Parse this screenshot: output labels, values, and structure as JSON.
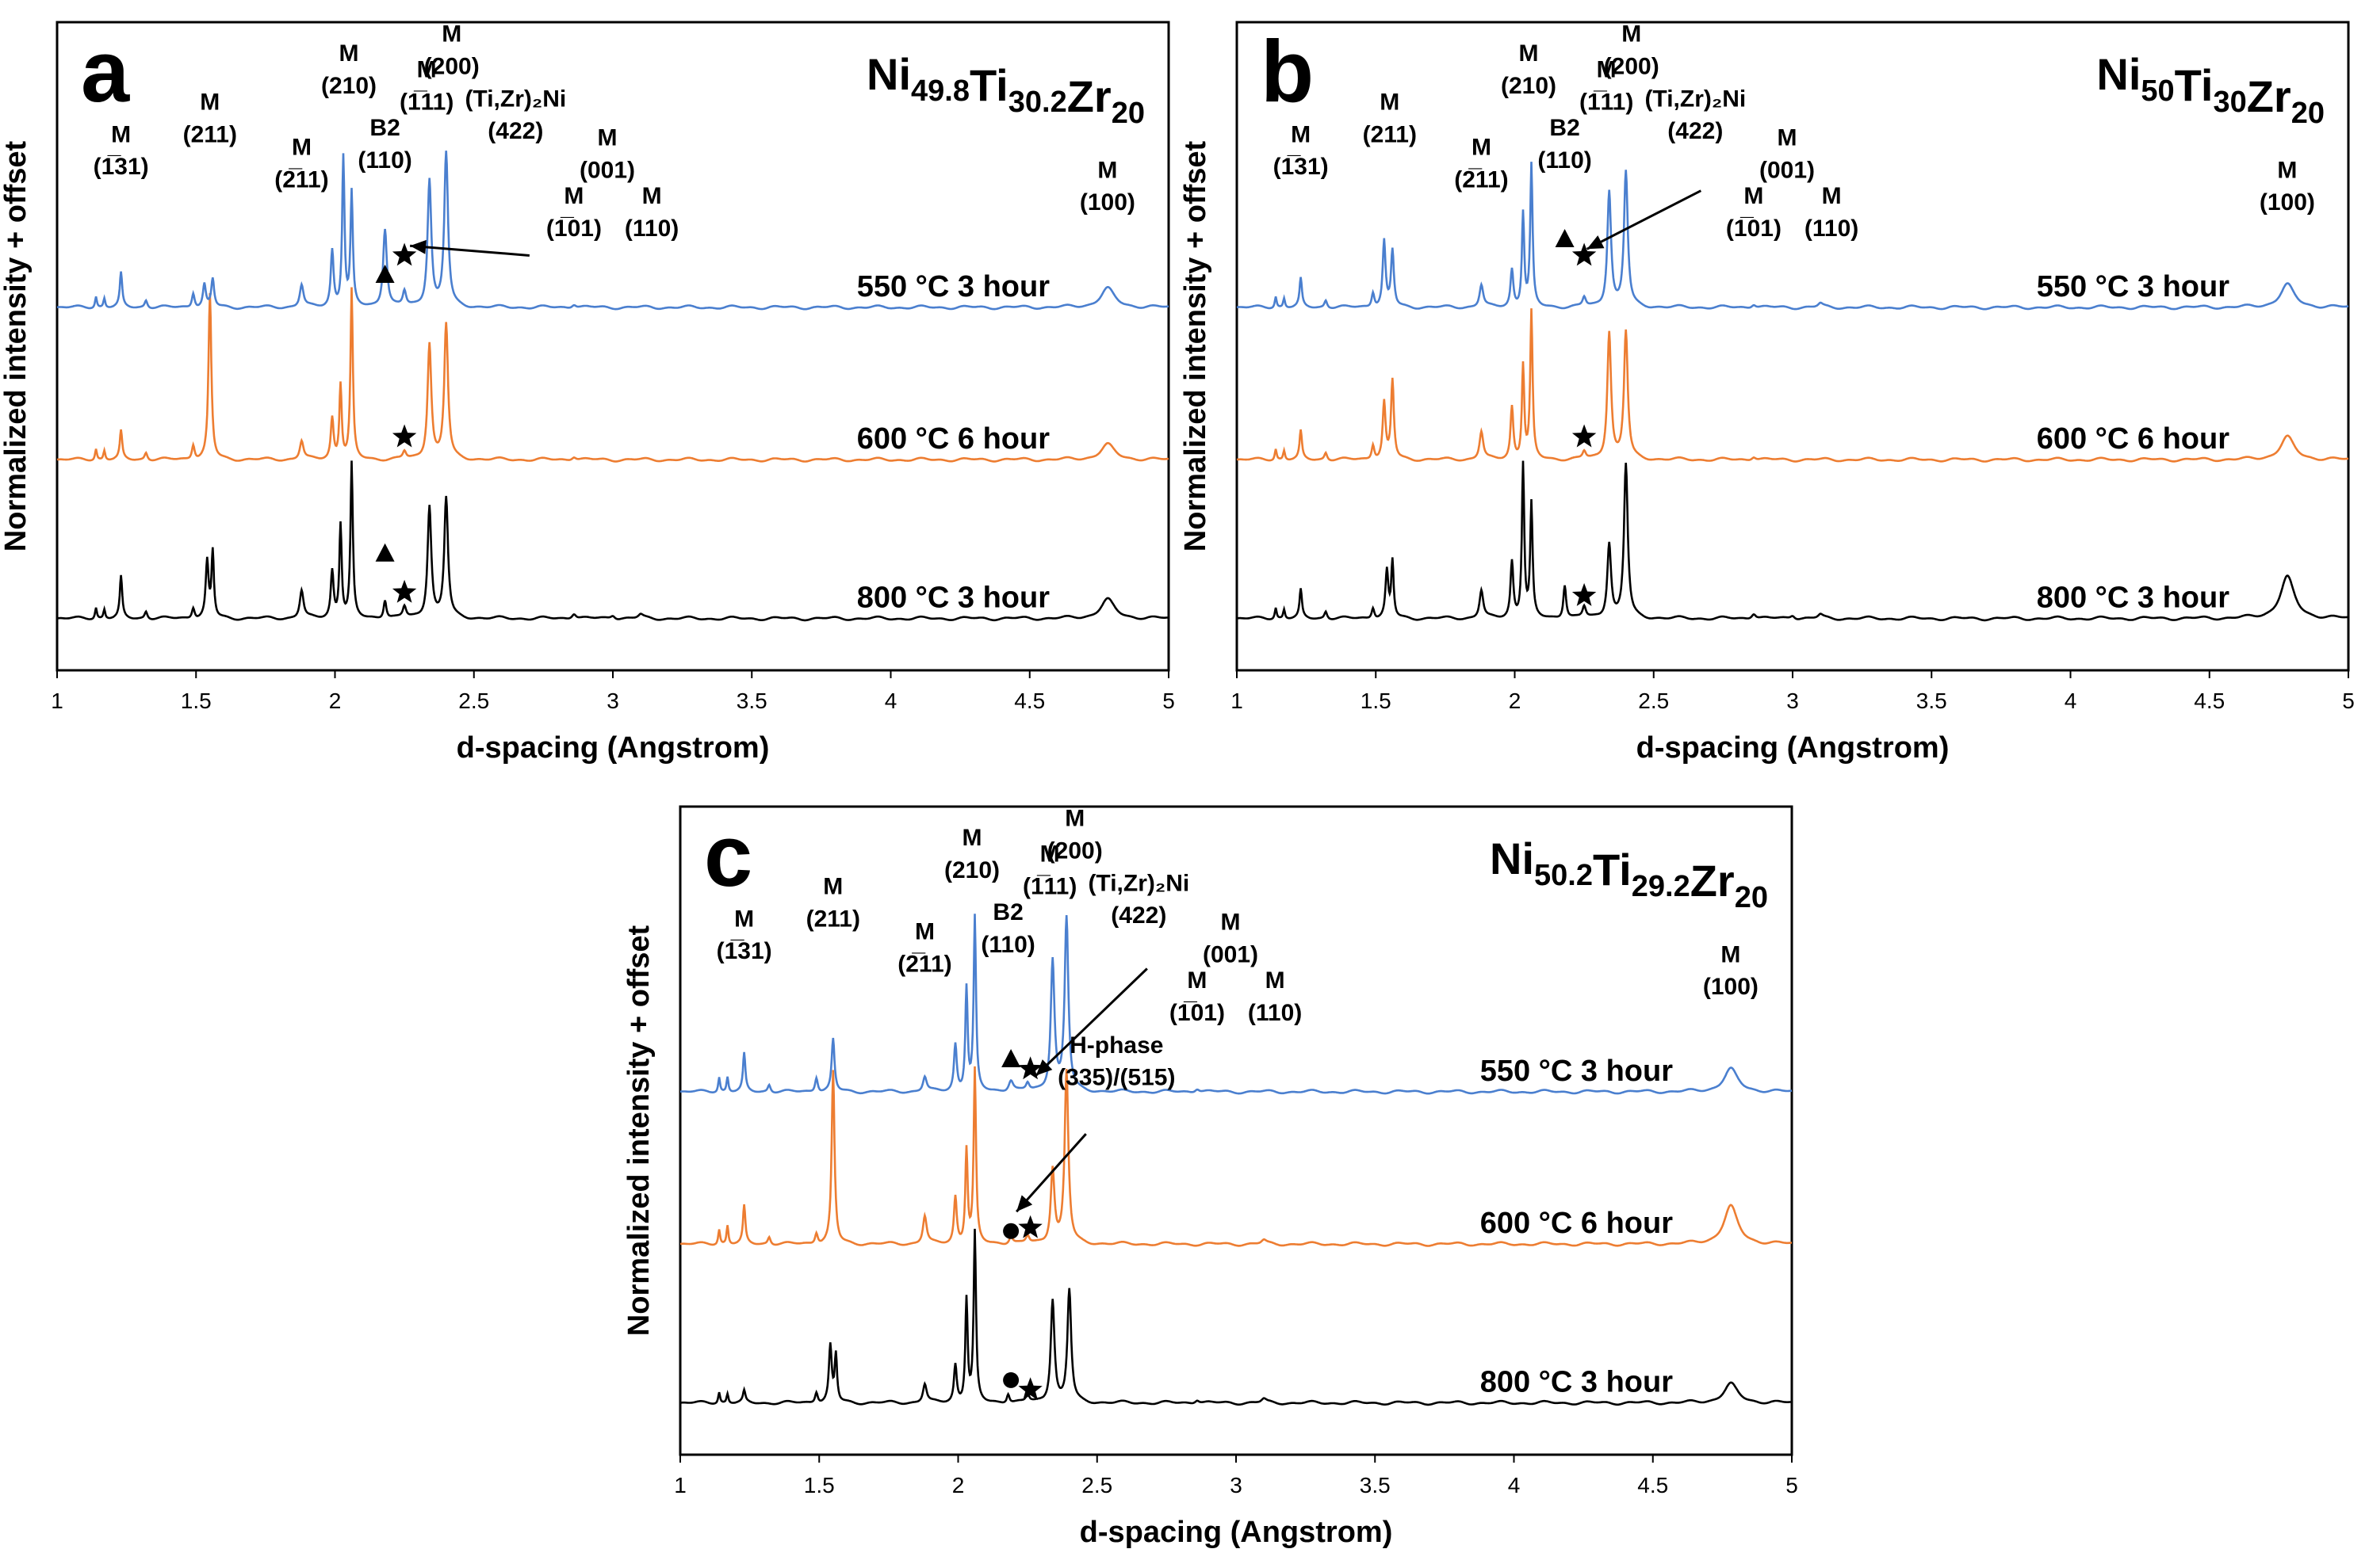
{
  "chart_data": [
    {
      "type": "line",
      "panel_label": "a",
      "composition": {
        "base": [
          "Ni",
          "Ti",
          "Zr"
        ],
        "subs": [
          "49.8",
          "30.2",
          "20"
        ]
      },
      "xlabel": "d-spacing (Angstrom)",
      "ylabel": "Normalized intensity + offset",
      "xlim": [
        1,
        5
      ],
      "x_ticks": [
        "1",
        "1.5",
        "2",
        "2.5",
        "3",
        "3.5",
        "4",
        "4.5",
        "5"
      ],
      "series": [
        {
          "name": "800 °C 3 hour",
          "color": "#000000",
          "offset": 2,
          "peaks": [
            [
              1.14,
              0.06,
              0.004
            ],
            [
              1.17,
              0.05,
              0.004
            ],
            [
              1.23,
              0.22,
              0.005
            ],
            [
              1.32,
              0.04,
              0.006
            ],
            [
              1.49,
              0.06,
              0.006
            ],
            [
              1.54,
              0.3,
              0.006
            ],
            [
              1.56,
              0.35,
              0.005
            ],
            [
              1.88,
              0.15,
              0.008
            ],
            [
              1.99,
              0.25,
              0.006
            ],
            [
              2.02,
              0.5,
              0.005
            ],
            [
              2.06,
              0.82,
              0.005
            ],
            [
              2.18,
              0.1,
              0.006
            ],
            [
              2.25,
              0.06,
              0.007
            ],
            [
              2.34,
              0.6,
              0.008
            ],
            [
              2.4,
              0.64,
              0.008
            ],
            [
              2.86,
              0.03,
              0.01
            ],
            [
              3.0,
              0.02,
              0.01
            ],
            [
              3.1,
              0.02,
              0.01
            ],
            [
              4.78,
              0.1,
              0.03
            ]
          ]
        },
        {
          "name": "600 °C 6 hour",
          "color": "#ed7d31",
          "offset": 1,
          "peaks": [
            [
              1.14,
              0.06,
              0.004
            ],
            [
              1.17,
              0.05,
              0.004
            ],
            [
              1.23,
              0.15,
              0.005
            ],
            [
              1.32,
              0.04,
              0.006
            ],
            [
              1.49,
              0.08,
              0.006
            ],
            [
              1.55,
              0.88,
              0.006
            ],
            [
              1.88,
              0.1,
              0.008
            ],
            [
              1.99,
              0.22,
              0.006
            ],
            [
              2.02,
              0.4,
              0.005
            ],
            [
              2.06,
              0.9,
              0.005
            ],
            [
              2.25,
              0.04,
              0.007
            ],
            [
              2.34,
              0.62,
              0.008
            ],
            [
              2.4,
              0.72,
              0.008
            ],
            [
              2.86,
              0.02,
              0.01
            ],
            [
              4.78,
              0.08,
              0.03
            ]
          ]
        },
        {
          "name": "550 °C 3 hour",
          "color": "#4a7fcf",
          "offset": 0,
          "peaks": [
            [
              1.14,
              0.06,
              0.004
            ],
            [
              1.17,
              0.05,
              0.004
            ],
            [
              1.23,
              0.18,
              0.005
            ],
            [
              1.32,
              0.04,
              0.006
            ],
            [
              1.49,
              0.08,
              0.006
            ],
            [
              1.53,
              0.12,
              0.006
            ],
            [
              1.56,
              0.15,
              0.006
            ],
            [
              1.88,
              0.12,
              0.008
            ],
            [
              1.99,
              0.3,
              0.006
            ],
            [
              2.03,
              0.8,
              0.005
            ],
            [
              2.06,
              0.6,
              0.005
            ],
            [
              2.18,
              0.42,
              0.008
            ],
            [
              2.25,
              0.08,
              0.007
            ],
            [
              2.34,
              0.68,
              0.008
            ],
            [
              2.4,
              0.82,
              0.008
            ],
            [
              2.86,
              0.02,
              0.01
            ],
            [
              4.78,
              0.1,
              0.03
            ]
          ]
        }
      ],
      "annotations": [
        "M",
        "(1̅31)",
        "M",
        "(211)",
        "M",
        "(2̅11)",
        "M",
        "(210)",
        "B2",
        "(110)",
        "M",
        "(1̅11)",
        "M",
        "(200)",
        "(Ti,Zr)₂Ni",
        "(422)",
        "M",
        "(001)",
        "M",
        "(1̅01)",
        "M",
        "(110)",
        "M",
        "(100)"
      ]
    },
    {
      "type": "line",
      "panel_label": "b",
      "composition": {
        "base": [
          "Ni",
          "Ti",
          "Zr"
        ],
        "subs": [
          "50",
          "30",
          "20"
        ]
      },
      "xlabel": "d-spacing (Angstrom)",
      "ylabel": "Normalized intensity + offset",
      "xlim": [
        1,
        5
      ],
      "x_ticks": [
        "1",
        "1.5",
        "2",
        "2.5",
        "3",
        "3.5",
        "4",
        "4.5",
        "5"
      ],
      "series": [
        {
          "name": "800 °C 3 hour",
          "color": "#000000",
          "offset": 2,
          "peaks": [
            [
              1.14,
              0.06,
              0.004
            ],
            [
              1.17,
              0.05,
              0.004
            ],
            [
              1.23,
              0.15,
              0.005
            ],
            [
              1.32,
              0.04,
              0.006
            ],
            [
              1.49,
              0.06,
              0.006
            ],
            [
              1.54,
              0.25,
              0.006
            ],
            [
              1.56,
              0.3,
              0.005
            ],
            [
              1.88,
              0.15,
              0.008
            ],
            [
              1.99,
              0.3,
              0.006
            ],
            [
              2.03,
              0.82,
              0.005
            ],
            [
              2.06,
              0.6,
              0.005
            ],
            [
              2.18,
              0.18,
              0.006
            ],
            [
              2.25,
              0.06,
              0.007
            ],
            [
              2.34,
              0.4,
              0.008
            ],
            [
              2.4,
              0.82,
              0.008
            ],
            [
              2.86,
              0.03,
              0.01
            ],
            [
              3.0,
              0.02,
              0.01
            ],
            [
              3.1,
              0.02,
              0.01
            ],
            [
              4.78,
              0.22,
              0.03
            ]
          ]
        },
        {
          "name": "600 °C 6 hour",
          "color": "#ed7d31",
          "offset": 1,
          "peaks": [
            [
              1.14,
              0.06,
              0.004
            ],
            [
              1.17,
              0.05,
              0.004
            ],
            [
              1.23,
              0.15,
              0.005
            ],
            [
              1.32,
              0.04,
              0.006
            ],
            [
              1.49,
              0.08,
              0.006
            ],
            [
              1.53,
              0.3,
              0.006
            ],
            [
              1.56,
              0.42,
              0.006
            ],
            [
              1.88,
              0.15,
              0.008
            ],
            [
              1.99,
              0.28,
              0.006
            ],
            [
              2.03,
              0.5,
              0.005
            ],
            [
              2.06,
              0.78,
              0.005
            ],
            [
              2.25,
              0.04,
              0.007
            ],
            [
              2.34,
              0.68,
              0.008
            ],
            [
              2.4,
              0.68,
              0.008
            ],
            [
              2.86,
              0.02,
              0.01
            ],
            [
              4.78,
              0.12,
              0.03
            ]
          ]
        },
        {
          "name": "550 °C 3 hour",
          "color": "#4a7fcf",
          "offset": 0,
          "peaks": [
            [
              1.14,
              0.06,
              0.004
            ],
            [
              1.17,
              0.05,
              0.004
            ],
            [
              1.23,
              0.15,
              0.005
            ],
            [
              1.32,
              0.04,
              0.006
            ],
            [
              1.49,
              0.08,
              0.006
            ],
            [
              1.53,
              0.35,
              0.006
            ],
            [
              1.56,
              0.3,
              0.006
            ],
            [
              1.88,
              0.12,
              0.008
            ],
            [
              1.99,
              0.2,
              0.006
            ],
            [
              2.03,
              0.5,
              0.005
            ],
            [
              2.06,
              0.75,
              0.005
            ],
            [
              2.25,
              0.05,
              0.007
            ],
            [
              2.34,
              0.62,
              0.008
            ],
            [
              2.4,
              0.72,
              0.008
            ],
            [
              2.86,
              0.02,
              0.01
            ],
            [
              3.1,
              0.02,
              0.01
            ],
            [
              4.78,
              0.12,
              0.03
            ]
          ]
        }
      ],
      "annotations": [
        "M",
        "(1̅31)",
        "M",
        "(211)",
        "M",
        "(2̅11)",
        "M",
        "(210)",
        "B2",
        "(110)",
        "M",
        "(1̅11)",
        "M",
        "(200)",
        "(Ti,Zr)₂Ni",
        "(422)",
        "M",
        "(001)",
        "M",
        "(1̅01)",
        "M",
        "(110)",
        "M",
        "(100)"
      ]
    },
    {
      "type": "line",
      "panel_label": "c",
      "composition": {
        "base": [
          "Ni",
          "Ti",
          "Zr"
        ],
        "subs": [
          "50.2",
          "29.2",
          "20"
        ]
      },
      "xlabel": "d-spacing (Angstrom)",
      "ylabel": "Normalized intensity + offset",
      "xlim": [
        1,
        5
      ],
      "x_ticks": [
        "1",
        "1.5",
        "2",
        "2.5",
        "3",
        "3.5",
        "4",
        "4.5",
        "5"
      ],
      "series": [
        {
          "name": "800 °C 3 hour",
          "color": "#000000",
          "offset": 2,
          "peaks": [
            [
              1.14,
              0.06,
              0.004
            ],
            [
              1.17,
              0.05,
              0.004
            ],
            [
              1.23,
              0.06,
              0.005
            ],
            [
              1.49,
              0.06,
              0.006
            ],
            [
              1.54,
              0.3,
              0.006
            ],
            [
              1.56,
              0.25,
              0.005
            ],
            [
              1.88,
              0.1,
              0.008
            ],
            [
              1.99,
              0.2,
              0.006
            ],
            [
              2.03,
              0.55,
              0.005
            ],
            [
              2.06,
              0.9,
              0.005
            ],
            [
              2.18,
              0.05,
              0.006
            ],
            [
              2.25,
              0.04,
              0.007
            ],
            [
              2.34,
              0.55,
              0.008
            ],
            [
              2.4,
              0.6,
              0.008
            ],
            [
              2.86,
              0.02,
              0.01
            ],
            [
              3.1,
              0.02,
              0.01
            ],
            [
              4.78,
              0.1,
              0.03
            ]
          ]
        },
        {
          "name": "600 °C 6 hour",
          "color": "#ed7d31",
          "offset": 1,
          "peaks": [
            [
              1.14,
              0.08,
              0.004
            ],
            [
              1.17,
              0.1,
              0.004
            ],
            [
              1.23,
              0.2,
              0.005
            ],
            [
              1.32,
              0.04,
              0.006
            ],
            [
              1.49,
              0.06,
              0.006
            ],
            [
              1.55,
              0.92,
              0.006
            ],
            [
              1.88,
              0.15,
              0.008
            ],
            [
              1.99,
              0.25,
              0.006
            ],
            [
              2.03,
              0.5,
              0.005
            ],
            [
              2.06,
              0.92,
              0.005
            ],
            [
              2.19,
              0.04,
              0.008
            ],
            [
              2.25,
              0.04,
              0.007
            ],
            [
              2.34,
              0.4,
              0.008
            ],
            [
              2.39,
              0.92,
              0.008
            ],
            [
              3.1,
              0.02,
              0.01
            ],
            [
              4.78,
              0.2,
              0.03
            ]
          ]
        },
        {
          "name": "550 °C 3 hour",
          "color": "#4a7fcf",
          "offset": 0,
          "peaks": [
            [
              1.14,
              0.08,
              0.004
            ],
            [
              1.17,
              0.08,
              0.004
            ],
            [
              1.23,
              0.2,
              0.005
            ],
            [
              1.32,
              0.04,
              0.006
            ],
            [
              1.49,
              0.08,
              0.006
            ],
            [
              1.55,
              0.28,
              0.006
            ],
            [
              1.88,
              0.08,
              0.008
            ],
            [
              1.99,
              0.25,
              0.006
            ],
            [
              2.03,
              0.55,
              0.005
            ],
            [
              2.06,
              0.92,
              0.005
            ],
            [
              2.19,
              0.06,
              0.01
            ],
            [
              2.25,
              0.04,
              0.007
            ],
            [
              2.34,
              0.7,
              0.008
            ],
            [
              2.39,
              0.92,
              0.008
            ],
            [
              2.86,
              0.02,
              0.01
            ],
            [
              4.78,
              0.12,
              0.03
            ]
          ]
        }
      ],
      "annotations": [
        "M",
        "(1̅31)",
        "M",
        "(211)",
        "M",
        "(2̅11)",
        "M",
        "(210)",
        "B2",
        "(110)",
        "M",
        "(1̅11)",
        "M",
        "(200)",
        "(Ti,Zr)₂Ni",
        "(422)",
        "M",
        "(001)",
        "M",
        "(1̅01)",
        "M",
        "(110)",
        "M",
        "(100)",
        "H-phase",
        "(335)/(515)"
      ]
    }
  ]
}
